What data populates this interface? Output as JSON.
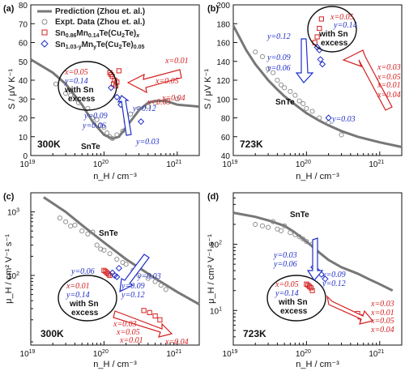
{
  "chart_data": [
    {
      "type": "scatter",
      "panel_label": "(a)",
      "temperature": "300K",
      "xlabel": "n_H / cm^-3",
      "ylabel": "S / μV K^-1",
      "xscale": "log",
      "yscale": "linear",
      "xlim": [
        1e+19,
        2e+21
      ],
      "ylim": [
        0,
        80
      ],
      "xticks": [
        "10^19",
        "10^20",
        "10^21"
      ],
      "yticks": [
        0,
        10,
        20,
        30,
        40,
        50,
        60,
        70,
        80
      ],
      "legend": {
        "position": "top-left",
        "entries": [
          "Prediction (Zhou et. al.)",
          "Expt. Data (Zhou et. al.)",
          "Sn0.86Mn0.14Te(Cu2Te)x",
          "Sn1.03-yMnyTe(Cu2Te)0.05"
        ]
      },
      "series": [
        {
          "name": "Prediction (Zhou et. al.)",
          "kind": "line",
          "x": [
            1e+19,
            2e+19,
            3e+19,
            5e+19,
            7e+19,
            1e+20,
            1.3e+20,
            1.6e+20,
            2e+20,
            2.5e+20,
            3e+20,
            4e+20,
            5e+20,
            7e+20,
            1e+21,
            2e+21
          ],
          "y": [
            51,
            44,
            38,
            27,
            18,
            11,
            9,
            10,
            15,
            20,
            24,
            28,
            29,
            29,
            27,
            26
          ]
        },
        {
          "name": "Expt. Data (Zhou et. al.)",
          "kind": "scatter",
          "x": [
            2.2e+19,
            3e+19,
            3.5e+19,
            4.5e+19,
            6e+19,
            7e+19,
            8e+19,
            9e+19,
            1e+20,
            1.1e+20,
            1.2e+20,
            1.3e+20,
            1.5e+20,
            1.8e+20,
            2e+20,
            2.3e+20,
            3e+20,
            4e+20,
            5e+20,
            7e+20,
            1e+21
          ],
          "y": [
            38,
            33,
            32,
            28,
            25,
            20,
            19,
            16,
            15,
            12,
            10,
            9,
            11,
            13,
            18,
            22,
            25,
            26,
            28,
            29,
            30
          ]
        },
        {
          "name": "Sn0.86Mn0.14Te(Cu2Te)x",
          "kind": "scatter",
          "x": [
            1.2e+20,
            1.25e+20,
            1.3e+20,
            1.4e+20,
            1.35e+20,
            1.5e+20,
            1.45e+20,
            1.6e+20
          ],
          "y": [
            44,
            43,
            42,
            40,
            38,
            39,
            37,
            45
          ]
        },
        {
          "name": "Sn1.03-yMnyTe(Cu2Te)0.05",
          "kind": "scatter",
          "x": [
            1.25e+20,
            1.5e+20,
            1.7e+20,
            3.2e+20
          ],
          "y": [
            36,
            31,
            27,
            18
          ]
        }
      ],
      "annotations": [
        "SnTe",
        "with Sn excess",
        "x=0.05",
        "y=0.14",
        "x=0.01",
        "x=0.05",
        "x=0.03",
        "x=0.04",
        "y=0.12",
        "y=0.09",
        "y=0.06",
        "y=0.03"
      ]
    },
    {
      "type": "scatter",
      "panel_label": "(b)",
      "temperature": "723K",
      "xlabel": "n_H / cm^-3",
      "ylabel": "S / μV K^-1",
      "xscale": "log",
      "yscale": "linear",
      "xlim": [
        1e+19,
        2e+21
      ],
      "ylim": [
        40,
        200
      ],
      "xticks": [
        "10^19",
        "10^20",
        "10^21"
      ],
      "yticks": [
        40,
        60,
        80,
        100,
        120,
        140,
        160,
        180,
        200
      ],
      "series": [
        {
          "name": "Prediction (Zhou et. al.)",
          "kind": "line",
          "x": [
            1e+19,
            1.5e+19,
            2e+19,
            3e+19,
            4e+19,
            5e+19,
            7e+19,
            1e+20,
            1.5e+20,
            2e+20,
            3e+20,
            5e+20,
            1e+21,
            2e+21
          ],
          "y": [
            178,
            152,
            137,
            120,
            110,
            103,
            94,
            85,
            77,
            72,
            66,
            60,
            54,
            49
          ]
        },
        {
          "name": "Expt. Data (Zhou et. al.)",
          "kind": "scatter",
          "x": [
            2e+19,
            2.5e+19,
            3e+19,
            3.5e+19,
            4e+19,
            4.5e+19,
            5e+19,
            6e+19,
            7e+19,
            8e+19,
            9e+19,
            1e+20,
            1.2e+20,
            1.5e+20,
            2e+20,
            3e+20
          ],
          "y": [
            150,
            145,
            132,
            128,
            120,
            115,
            112,
            108,
            104,
            98,
            95,
            90,
            87,
            80,
            75,
            62
          ]
        },
        {
          "name": "Sn0.86Mn0.14Te(Cu2Te)x",
          "kind": "scatter",
          "x": [
            1.3e+20,
            1.4e+20,
            1.5e+20,
            1.6e+20
          ],
          "y": [
            160,
            166,
            175,
            185
          ]
        },
        {
          "name": "Sn1.03-yMnyTe(Cu2Te)0.05",
          "kind": "scatter",
          "x": [
            1.4e+20,
            1.5e+20,
            1.55e+20,
            1.65e+20,
            2e+20
          ],
          "y": [
            155,
            152,
            142,
            137,
            80
          ]
        }
      ],
      "annotations": [
        "SnTe",
        "with Sn excess",
        "x=0.05",
        "y=0.14",
        "y=0.12",
        "y=0.09",
        "y=0.06",
        "y=0.03",
        "x=0.03",
        "x=0.05",
        "x=0.01",
        "x=0.04"
      ]
    },
    {
      "type": "scatter",
      "panel_label": "(c)",
      "temperature": "300K",
      "xlabel": "n_H / cm^-3",
      "ylabel": "μ_H / cm^2 V^-1 s^-1",
      "xscale": "log",
      "yscale": "log",
      "xlim": [
        1e+19,
        2e+21
      ],
      "ylim": [
        8,
        2000
      ],
      "xticks": [
        "10^19",
        "10^20",
        "10^21"
      ],
      "yticks": [
        "10^2",
        "10^3"
      ],
      "series": [
        {
          "name": "Prediction (Zhou et. al.)",
          "kind": "line",
          "x": [
            1.5e+19,
            3e+19,
            5e+19,
            1e+20,
            2e+20,
            5e+20,
            1e+21,
            2e+21
          ],
          "y": [
            1700,
            1000,
            620,
            330,
            180,
            90,
            55,
            35
          ]
        },
        {
          "name": "Expt. Data (Zhou et. al.)",
          "kind": "scatter",
          "x": [
            2.5e+19,
            3e+19,
            3.5e+19,
            4e+19,
            5e+19,
            6e+19,
            7e+19,
            8e+19,
            9e+19,
            1e+20,
            1.2e+20,
            1.5e+20,
            1.8e+20,
            2e+20,
            2.5e+20,
            3e+20,
            4e+20,
            5e+20,
            6e+20,
            7e+20
          ],
          "y": [
            800,
            700,
            600,
            620,
            500,
            450,
            480,
            300,
            260,
            250,
            220,
            180,
            160,
            150,
            120,
            100,
            90,
            80,
            70,
            60
          ]
        },
        {
          "name": "Sn0.86Mn0.14Te(Cu2Te)x",
          "kind": "scatter",
          "x": [
            1e+20,
            1.05e+20,
            1.1e+20,
            1.15e+20,
            1.2e+20,
            3.5e+20,
            4.2e+20,
            5e+20,
            5.8e+20
          ],
          "y": [
            120,
            115,
            110,
            105,
            100,
            28,
            26,
            23,
            20
          ]
        },
        {
          "name": "Sn1.03-yMnyTe(Cu2Te)0.05",
          "kind": "scatter",
          "x": [
            1.3e+20,
            1.4e+20,
            1.5e+20,
            1.6e+20
          ],
          "y": [
            110,
            100,
            95,
            130
          ]
        }
      ],
      "annotations": [
        "SnTe",
        "with Sn excess",
        "y=0.06",
        "y=0.03",
        "y=0.09",
        "y=0.12",
        "x=0.01",
        "y=0.14",
        "x=0.03",
        "x=0.05",
        "x=0.01",
        "x=0.04"
      ]
    },
    {
      "type": "scatter",
      "panel_label": "(d)",
      "temperature": "723K",
      "xlabel": "n_H / cm^-3",
      "ylabel": "μ_H / cm^2 V^-1 s^-1",
      "xscale": "log",
      "yscale": "log",
      "xlim": [
        1e+19,
        2e+21
      ],
      "ylim": [
        3,
        600
      ],
      "xticks": [
        "10^19",
        "10^20",
        "10^21"
      ],
      "yticks": [
        "10^1",
        "10^2"
      ],
      "series": [
        {
          "name": "Prediction (Zhou et. al.)",
          "kind": "line",
          "x": [
            1e+19,
            2e+19,
            3e+19,
            5e+19,
            7e+19,
            1e+20,
            1.5e+20,
            2e+20,
            3e+20,
            5e+20,
            7e+20,
            1e+21,
            1.5e+21
          ],
          "y": [
            300,
            260,
            230,
            190,
            150,
            110,
            75,
            58,
            45,
            36,
            30,
            25,
            20
          ]
        },
        {
          "name": "Expt. Data (Zhou et. al.)",
          "kind": "scatter",
          "x": [
            2e+19,
            2.5e+19,
            3e+19,
            3.5e+19,
            4e+19,
            4.5e+19,
            5e+19,
            6e+19,
            7e+19,
            8e+19,
            9e+19,
            1e+20,
            1.2e+20
          ],
          "y": [
            200,
            190,
            180,
            220,
            170,
            160,
            190,
            150,
            140,
            130,
            120,
            110,
            100
          ]
        },
        {
          "name": "Sn0.86Mn0.14Te(Cu2Te)x",
          "kind": "scatter",
          "x": [
            1e+20,
            1.05e+20,
            1.1e+20,
            1.15e+20,
            1.2e+20,
            5e+20,
            5.4e+20,
            5.8e+20
          ],
          "y": [
            25,
            24,
            23,
            22,
            20,
            9,
            8,
            7
          ]
        },
        {
          "name": "Sn1.03-yMnyTe(Cu2Te)0.05",
          "kind": "scatter",
          "x": [
            1.25e+20,
            1.4e+20,
            1.6e+20,
            1.8e+20
          ],
          "y": [
            45,
            40,
            35,
            30
          ]
        }
      ],
      "annotations": [
        "SnTe",
        "with Sn excess",
        "y=0.03",
        "y=0.06",
        "y=0.09",
        "y=0.12",
        "x=0.05",
        "y=0.14",
        "x=0.03",
        "x=0.01",
        "x=0.05",
        "x=0.04"
      ]
    }
  ],
  "legend_text": {
    "pred": "Prediction (Zhou et. al.)",
    "expt": "Expt. Data (Zhou et. al.)",
    "red_main": "Sn",
    "red_sub1": "0.86",
    "red_mid": "Mn",
    "red_sub2": "0.14",
    "red_tail": "Te(Cu",
    "red_sub3": "2",
    "red_end": "Te)",
    "red_subx": "x",
    "blue_main": "Sn",
    "blue_sub1": "1.03-y",
    "blue_mid": "Mn",
    "blue_sub2": "y",
    "blue_tail": "Te(Cu",
    "blue_sub3": "2",
    "blue_end": "Te)",
    "blue_sub4": "0.05"
  },
  "panels": {
    "a": {
      "label": "(a)",
      "temp": "300K",
      "ylabel": "S / μV K⁻¹",
      "xlabel": "n_H / cm⁻³",
      "snte": "SnTe",
      "with_sn_1": "with Sn",
      "with_sn_2": "excess",
      "red_in": [
        "x=0.05",
        "y=0.14"
      ],
      "red_out": [
        "x=0.01",
        "x=0.05",
        "x=0.03",
        "x=0.04"
      ],
      "blue": [
        "y=0.12",
        "y=0.09",
        "y=0.06",
        "y=0.03"
      ]
    },
    "b": {
      "label": "(b)",
      "temp": "723K",
      "ylabel": "S / μV K⁻¹",
      "xlabel": "n_H / cm⁻³",
      "snte": "SnTe",
      "with_sn_1": "with Sn",
      "with_sn_2": "excess",
      "red_in": [
        "x=0.05",
        "y=0.14"
      ],
      "red_out": [
        "x=0.03",
        "x=0.05",
        "x=0.01",
        "x=0.04"
      ],
      "blue": [
        "y=0.12",
        "y=0.09",
        "y=0.06",
        "y=0.03"
      ]
    },
    "c": {
      "label": "(c)",
      "temp": "300K",
      "ylabel": "μ_H / cm² V⁻¹ s⁻¹",
      "xlabel": "n_H / cm⁻³",
      "snte": "SnTe",
      "with_sn_1": "with Sn",
      "with_sn_2": "excess",
      "red_in": [
        "x=0.01",
        "y=0.14"
      ],
      "red_out": [
        "x=0.03",
        "x=0.05",
        "x=0.01",
        "x=0.04"
      ],
      "blue": [
        "y=0.06",
        "y=0.03",
        "y=0.09",
        "y=0.12"
      ]
    },
    "d": {
      "label": "(d)",
      "temp": "723K",
      "ylabel": "μ_H / cm² V⁻¹ s⁻¹",
      "xlabel": "n_H / cm⁻³",
      "snte": "SnTe",
      "with_sn_1": "with Sn",
      "with_sn_2": "excess",
      "red_in": [
        "x=0.05",
        "y=0.14"
      ],
      "red_out": [
        "x=0.03",
        "x=0.01",
        "x=0.05",
        "x=0.04"
      ],
      "blue": [
        "y=0.03",
        "y=0.06",
        "y=0.09",
        "y=0.12"
      ]
    }
  },
  "ticks": {
    "x": [
      "10",
      "10",
      "10"
    ],
    "x_exp": [
      "19",
      "20",
      "21"
    ],
    "a_y": [
      "0",
      "10",
      "20",
      "30",
      "40",
      "50",
      "60",
      "70",
      "80"
    ],
    "b_y": [
      "40",
      "60",
      "80",
      "100",
      "120",
      "140",
      "160",
      "180",
      "200"
    ],
    "c_y": [
      "10",
      "10"
    ],
    "c_y_exp": [
      "2",
      "3"
    ],
    "d_y": [
      "10",
      "10"
    ],
    "d_y_exp": [
      "1",
      "2"
    ]
  },
  "colors": {
    "line": "#777777",
    "expt": "#888888",
    "red": "#d42020",
    "blue": "#2030c8",
    "black": "#111111"
  }
}
